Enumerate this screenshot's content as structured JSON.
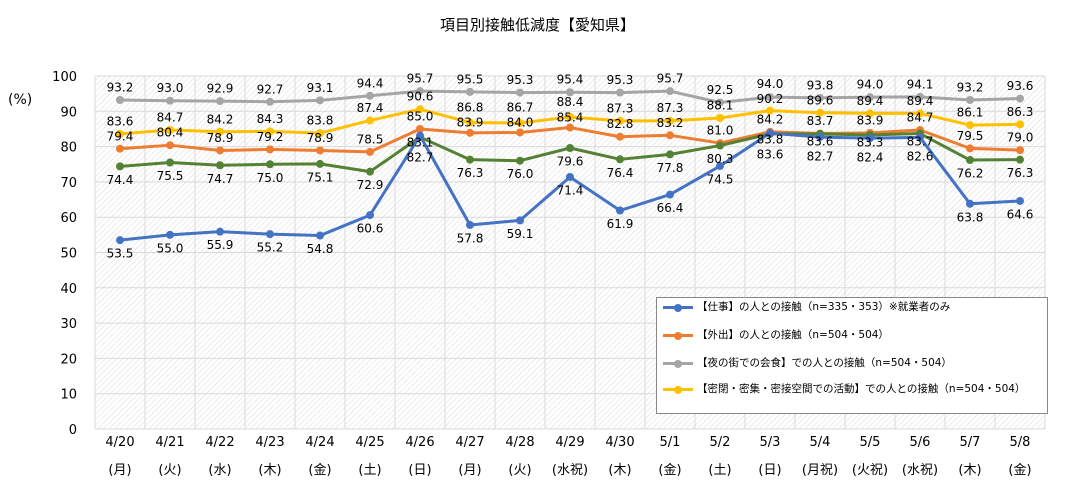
{
  "chart_data": {
    "type": "line",
    "title": "項目別接触低減度【愛知県】",
    "ylabel": "(%)",
    "ylim": [
      0,
      100
    ],
    "yticks": [
      0,
      10,
      20,
      30,
      40,
      50,
      60,
      70,
      80,
      90,
      100
    ],
    "grid": true,
    "legend_position": "bottom-right",
    "categories": [
      "4/20",
      "4/21",
      "4/22",
      "4/23",
      "4/24",
      "4/25",
      "4/26",
      "4/27",
      "4/28",
      "4/29",
      "4/30",
      "5/1",
      "5/2",
      "5/3",
      "5/4",
      "5/5",
      "5/6",
      "5/7",
      "5/8"
    ],
    "weekdays": [
      "(月)",
      "(火)",
      "(水)",
      "(木)",
      "(金)",
      "(土)",
      "(日)",
      "(月)",
      "(火)",
      "(水祝)",
      "(木)",
      "(金)",
      "(土)",
      "(日)",
      "(月祝)",
      "(火祝)",
      "(水祝)",
      "(木)",
      "(金)"
    ],
    "series": [
      {
        "name": "【仕事】の人との接触（n=335・353）※就業者のみ",
        "color": "#4472C4",
        "label_pos": "below",
        "values": [
          53.5,
          55.0,
          55.9,
          55.2,
          54.8,
          60.6,
          83.1,
          57.8,
          59.1,
          71.4,
          61.9,
          66.4,
          74.5,
          83.8,
          82.7,
          82.4,
          82.6,
          63.8,
          64.6
        ]
      },
      {
        "name": "【外出】の人との接触（n=504・504）",
        "color": "#ED7D31",
        "label_pos": "above",
        "values": [
          79.4,
          80.4,
          78.9,
          79.2,
          78.9,
          78.5,
          85.0,
          83.9,
          84.0,
          85.4,
          82.8,
          83.2,
          81.0,
          84.2,
          83.7,
          83.9,
          84.7,
          79.5,
          79.0
        ]
      },
      {
        "name": "【夜の街での会食】での人との接触（n=504・504）",
        "color": "#A5A5A5",
        "label_pos": "above",
        "values": [
          93.2,
          93.0,
          92.9,
          92.7,
          93.1,
          94.4,
          95.7,
          95.5,
          95.3,
          95.4,
          95.3,
          95.7,
          92.5,
          94.0,
          93.8,
          94.0,
          94.1,
          93.2,
          93.6
        ]
      },
      {
        "name": "【密閉・密集・密接空間での活動】での人との接触（n=504・504）",
        "color": "#FFC000",
        "label_pos": "above",
        "values": [
          83.6,
          84.7,
          84.2,
          84.3,
          83.8,
          87.4,
          90.6,
          86.8,
          86.7,
          88.4,
          87.3,
          87.3,
          88.1,
          90.2,
          89.6,
          89.4,
          89.4,
          86.1,
          86.3
        ]
      },
      {
        "name": "",
        "color": "#548235",
        "label_pos": "below",
        "values": [
          74.4,
          75.5,
          74.7,
          75.0,
          75.1,
          72.9,
          82.7,
          76.3,
          76.0,
          79.6,
          76.4,
          77.8,
          80.3,
          83.6,
          83.6,
          83.3,
          83.7,
          76.2,
          76.3
        ]
      }
    ]
  }
}
